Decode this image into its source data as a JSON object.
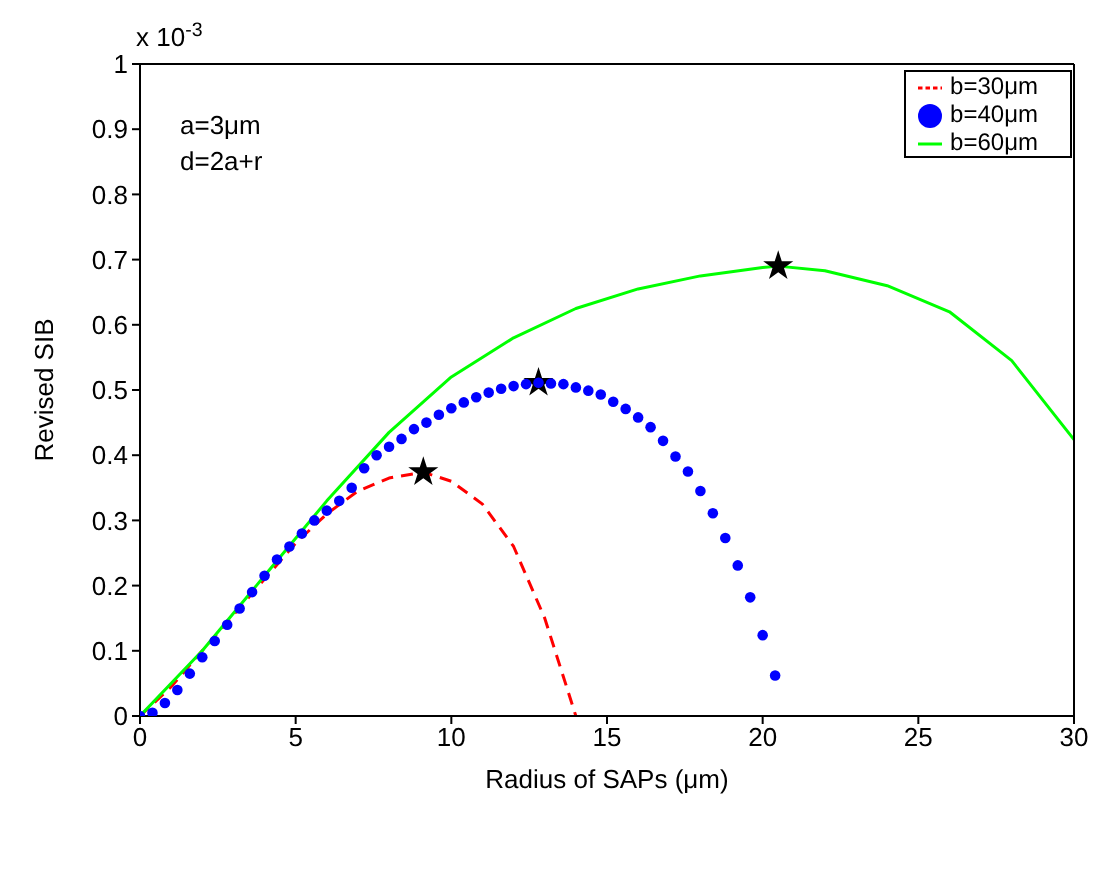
{
  "chart_data": {
    "type": "line",
    "xlabel": "Radius of SAPs (μm)",
    "ylabel": "Revised SIB",
    "annotations": [
      "x 10$^{-3}$",
      "a=3μm",
      "d=2a+r"
    ],
    "xlim": [
      0,
      30
    ],
    "xticks": [
      0,
      5,
      10,
      15,
      20,
      25,
      30
    ],
    "ylim": [
      0,
      1
    ],
    "yticks": [
      0,
      0.1,
      0.2,
      0.3,
      0.4,
      0.5,
      0.6,
      0.7,
      0.8,
      0.9,
      1
    ],
    "grid": false,
    "legend": "top right",
    "series": [
      {
        "type": "scatter",
        "marker": "star",
        "color": "#000000",
        "x": [
          9.1,
          12.8,
          20.5
        ],
        "values": [
          0.374,
          0.511,
          0.69
        ]
      },
      {
        "name": "b=30μm",
        "type": "line",
        "line_style": "dashed",
        "marker": "none",
        "color": "#ff0000",
        "x": [
          0,
          1,
          2,
          3,
          4,
          5,
          6,
          7,
          8,
          9,
          9.1,
          10,
          11,
          12,
          13,
          14
        ],
        "values": [
          0,
          0.045,
          0.1,
          0.155,
          0.21,
          0.265,
          0.31,
          0.345,
          0.365,
          0.373,
          0.374,
          0.36,
          0.325,
          0.26,
          0.15,
          0
        ]
      },
      {
        "name": "b=40μm",
        "type": "scatter",
        "marker": "circle",
        "color": "#0000ff",
        "x": [
          0,
          0.4,
          0.8,
          1.2,
          1.6,
          2,
          2.4,
          2.8,
          3.2,
          3.6,
          4,
          4.4,
          4.8,
          5.2,
          5.6,
          6,
          6.4,
          6.8,
          7.2,
          7.6,
          8,
          8.4,
          8.8,
          9.2,
          9.6,
          10,
          10.4,
          10.8,
          11.2,
          11.6,
          12,
          12.4,
          12.8,
          13.2,
          13.6,
          14,
          14.4,
          14.8,
          15.2,
          15.6,
          16,
          16.4,
          16.8,
          17.2,
          17.6,
          18,
          18.4,
          18.8,
          19.2,
          19.6,
          20,
          20.4
        ],
        "values": [
          0,
          0.005,
          0.02,
          0.04,
          0.065,
          0.09,
          0.115,
          0.14,
          0.165,
          0.19,
          0.215,
          0.24,
          0.26,
          0.28,
          0.3,
          0.315,
          0.33,
          0.35,
          0.38,
          0.4,
          0.413,
          0.425,
          0.44,
          0.45,
          0.462,
          0.472,
          0.481,
          0.489,
          0.496,
          0.502,
          0.506,
          0.509,
          0.511,
          0.51,
          0.509,
          0.504,
          0.499,
          0.493,
          0.482,
          0.471,
          0.458,
          0.443,
          0.422,
          0.398,
          0.375,
          0.345,
          0.311,
          0.273,
          0.231,
          0.182,
          0.124,
          0.062
        ]
      },
      {
        "name": "b=60μm",
        "line_style": "solid",
        "marker": "none",
        "color": "#00ff00",
        "x": [
          0,
          2,
          4,
          6,
          8,
          10,
          12,
          14,
          16,
          18,
          20,
          20.5,
          22,
          24,
          26,
          28,
          30
        ],
        "values": [
          0,
          0.1,
          0.215,
          0.33,
          0.435,
          0.52,
          0.58,
          0.625,
          0.655,
          0.675,
          0.688,
          0.69,
          0.683,
          0.66,
          0.62,
          0.545,
          0.424
        ]
      }
    ]
  }
}
